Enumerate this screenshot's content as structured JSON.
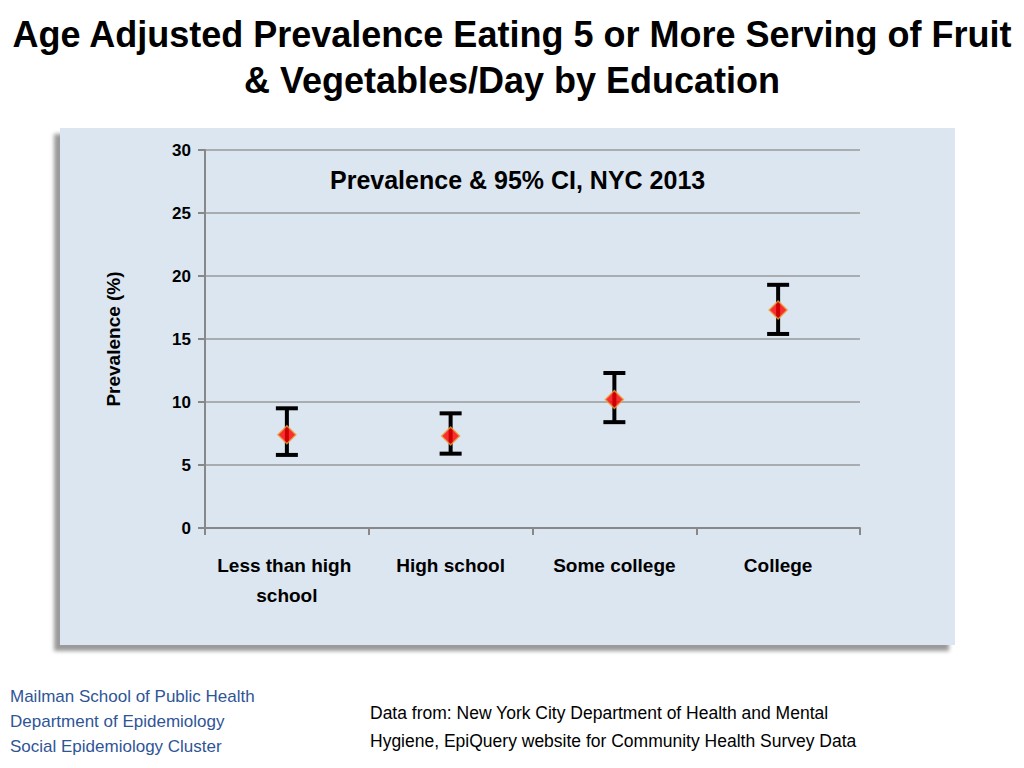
{
  "page": {
    "title": "Age Adjusted Prevalence Eating 5 or More Serving of Fruit & Vegetables/Day by Education",
    "footer_left": [
      "Mailman School of Public Health",
      "Department of Epidemiology",
      "Social Epidemiology Cluster"
    ],
    "source": [
      "Data from: New York City Department of Health and Mental",
      "Hygiene, EpiQuery website for Community Health Survey Data"
    ]
  },
  "chart_data": {
    "type": "scatter",
    "title": "Prevalence & 95% CI, NYC 2013",
    "y_label": "Prevalence (%)",
    "categories": [
      "Less than high school",
      "High school",
      "Some college",
      "College"
    ],
    "values": [
      7.4,
      7.3,
      10.2,
      17.3
    ],
    "ci_lower": [
      5.8,
      5.9,
      8.4,
      15.4
    ],
    "ci_upper": [
      9.5,
      9.1,
      12.3,
      19.3
    ],
    "color": "#ff0000",
    "marker": "diamond",
    "ylim": [
      0,
      30
    ],
    "yticks": [
      0,
      5,
      10,
      15,
      20,
      25,
      30
    ],
    "grid": true
  }
}
